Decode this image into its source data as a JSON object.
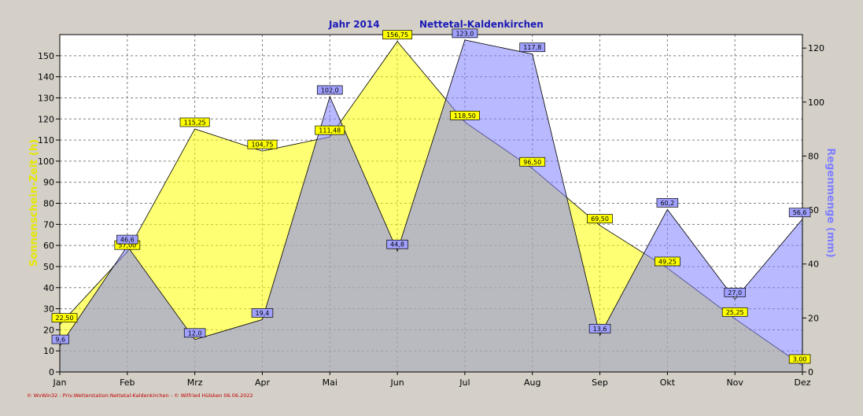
{
  "chart_data": {
    "type": "area",
    "title": "Jahr  2014",
    "subtitle": "Nettetal-Kaldenkirchen",
    "categories": [
      "Jan",
      "Feb",
      "Mrz",
      "Apr",
      "Mai",
      "Jun",
      "Jul",
      "Aug",
      "Sep",
      "Okt",
      "Nov",
      "Dez"
    ],
    "ylabel_left": "Sonnenschein-Zeit  (h)",
    "ylabel_right": "Regenmenge  (mm)",
    "ylim_left": [
      0,
      160
    ],
    "ylim_right": [
      0,
      125
    ],
    "yticks_left": [
      0,
      10,
      20,
      30,
      40,
      50,
      60,
      70,
      80,
      90,
      100,
      110,
      120,
      130,
      140,
      150
    ],
    "yticks_right": [
      0,
      20,
      40,
      60,
      80,
      100,
      120
    ],
    "grid": true,
    "series": [
      {
        "name": "Sonnenschein-Zeit  (h)",
        "axis": "left",
        "color": "#ffff00",
        "values": [
          22.5,
          57.0,
          115.25,
          104.75,
          111.48,
          156.75,
          118.5,
          96.5,
          69.5,
          49.25,
          25.25,
          3.0
        ],
        "labels": [
          "22,50",
          "57,00",
          "115,25",
          "104,75",
          "111,48",
          "156,75",
          "118,50",
          "96,50",
          "69,50",
          "49,25",
          "25,25",
          "3,00"
        ]
      },
      {
        "name": "Regenmenge  (mm)",
        "axis": "right",
        "color": "#8080ff",
        "values": [
          9.6,
          46.6,
          12.0,
          19.4,
          102.0,
          44.8,
          123.0,
          117.8,
          13.6,
          60.2,
          27.0,
          56.6
        ],
        "labels": [
          "9,6",
          "46,6",
          "12,0",
          "19,4",
          "102,0",
          "44,8",
          "123,0",
          "117,8",
          "13,6",
          "60,2",
          "27,0",
          "56,6"
        ]
      }
    ],
    "footer": "© WvWin32  -  Priv.Wetterstation:Nettetal-Kaldenkirchen  -  © Wilfried Hülsken  06.06.2022"
  }
}
